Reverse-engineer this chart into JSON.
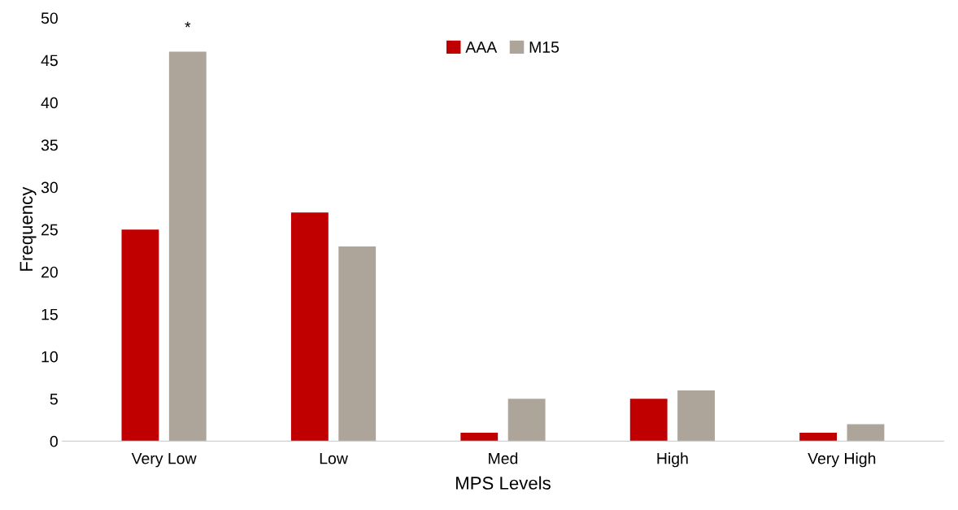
{
  "chart_data": {
    "type": "bar",
    "xlabel": "MPS Levels",
    "ylabel": "Frequency",
    "categories": [
      "Very Low",
      "Low",
      "Med",
      "High",
      "Very High"
    ],
    "series": [
      {
        "name": "AAA",
        "color": "#c00000",
        "values": [
          25,
          27,
          1,
          5,
          1
        ]
      },
      {
        "name": "M15",
        "color": "#aea59a",
        "values": [
          46,
          23,
          5,
          6,
          2
        ]
      }
    ],
    "ylim": [
      0,
      50
    ],
    "yticks": [
      0,
      5,
      10,
      15,
      20,
      25,
      30,
      35,
      40,
      45,
      50
    ],
    "grid": false,
    "legend": "top",
    "annotations": [
      "*"
    ]
  }
}
